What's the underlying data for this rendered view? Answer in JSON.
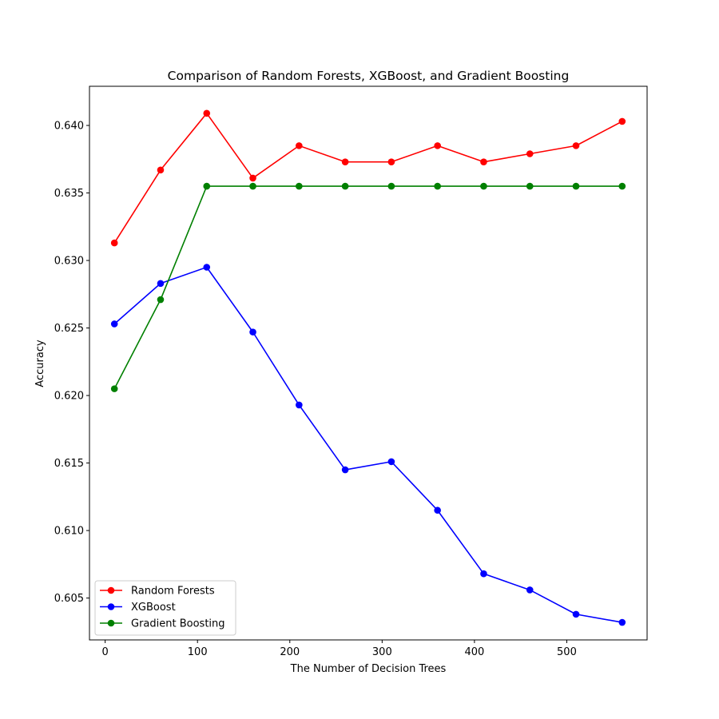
{
  "chart_data": {
    "type": "line",
    "title": "Comparison of Random Forests, XGBoost, and Gradient Boosting",
    "xlabel": "The Number of Decision Trees",
    "ylabel": "Accuracy",
    "x": [
      10,
      60,
      110,
      160,
      210,
      260,
      310,
      360,
      410,
      460,
      510,
      560
    ],
    "xlim": [
      -17,
      587
    ],
    "ylim": [
      0.6019,
      0.6429
    ],
    "xticks": [
      0,
      100,
      200,
      300,
      400,
      500
    ],
    "xtick_labels": [
      "0",
      "100",
      "200",
      "300",
      "400",
      "500"
    ],
    "yticks": [
      0.605,
      0.61,
      0.615,
      0.62,
      0.625,
      0.63,
      0.635,
      0.64
    ],
    "ytick_labels": [
      "0.605",
      "0.610",
      "0.615",
      "0.620",
      "0.625",
      "0.630",
      "0.635",
      "0.640"
    ],
    "grid": false,
    "legend_position": "lower-left",
    "series": [
      {
        "name": "Random Forests",
        "color": "#ff0000",
        "marker": "circle",
        "values": [
          0.6313,
          0.6367,
          0.6409,
          0.6361,
          0.6385,
          0.6373,
          0.6373,
          0.6385,
          0.6373,
          0.6379,
          0.6385,
          0.6403
        ]
      },
      {
        "name": "XGBoost",
        "color": "#0000ff",
        "marker": "circle",
        "values": [
          0.6253,
          0.6283,
          0.6295,
          0.6247,
          0.6193,
          0.6145,
          0.6151,
          0.6115,
          0.6068,
          0.6056,
          0.6038,
          0.6032
        ]
      },
      {
        "name": "Gradient Boosting",
        "color": "#008000",
        "marker": "circle",
        "values": [
          0.6205,
          0.6271,
          0.6355,
          0.6355,
          0.6355,
          0.6355,
          0.6355,
          0.6355,
          0.6355,
          0.6355,
          0.6355,
          0.6355
        ]
      }
    ]
  }
}
